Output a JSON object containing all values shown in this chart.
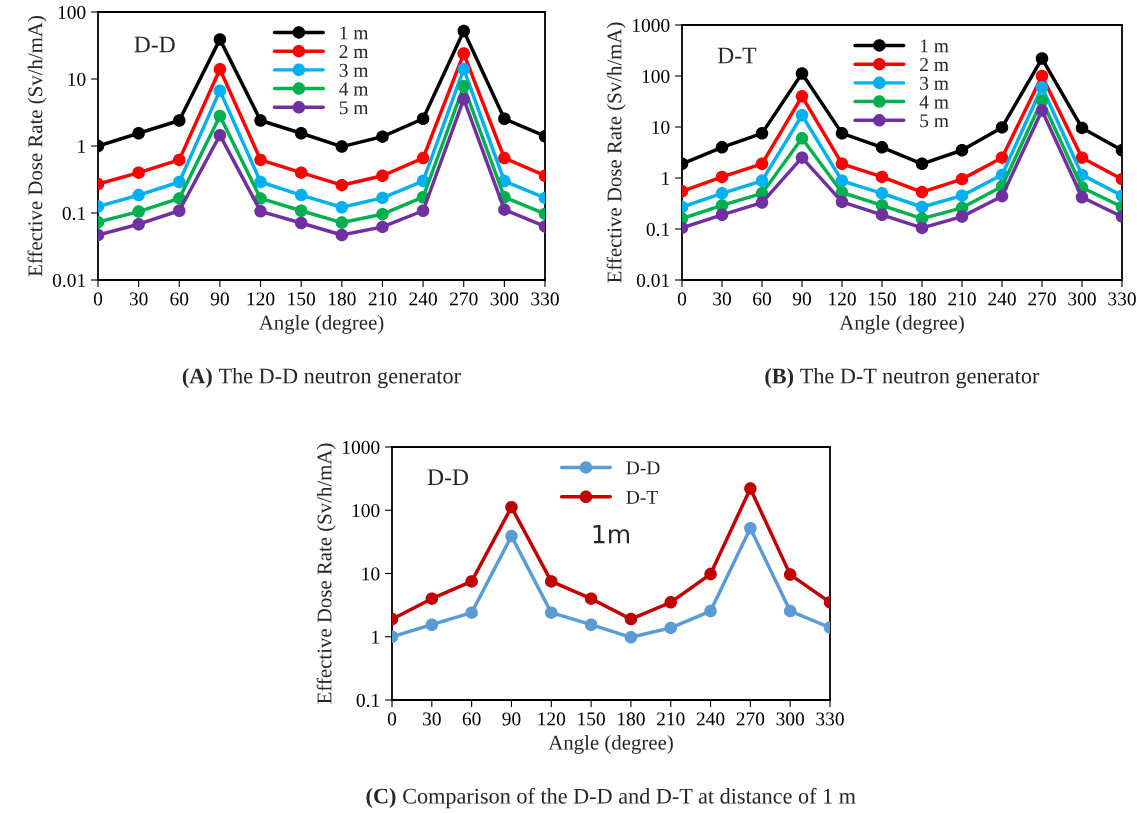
{
  "chart_data": [
    {
      "type": "line",
      "title": "(A) The D-D neutron generator",
      "xlabel": "Angle (degree)",
      "ylabel": "Effective Dose Rate (Sv/h/mA)",
      "annotations": [
        "D-D"
      ],
      "x": [
        0,
        30,
        60,
        90,
        120,
        150,
        180,
        210,
        240,
        270,
        300,
        330
      ],
      "xlim": [
        0,
        330
      ],
      "xticks": [
        0,
        30,
        60,
        90,
        120,
        150,
        180,
        210,
        240,
        270,
        300,
        330
      ],
      "log": "y",
      "ylim": [
        0.01,
        100
      ],
      "yticks": [
        0.01,
        0.1,
        1,
        10,
        100
      ],
      "grid": false,
      "legend": "top",
      "marker": "circle",
      "line_style": "solid",
      "series": [
        {
          "name": "1 m",
          "color": "#000000",
          "values": [
            1,
            1.55,
            2.4,
            39,
            2.4,
            1.55,
            0.98,
            1.38,
            2.55,
            52,
            2.55,
            1.4
          ]
        },
        {
          "name": "2 m",
          "color": "#ff0000",
          "values": [
            0.27,
            0.4,
            0.62,
            14,
            0.62,
            0.4,
            0.26,
            0.36,
            0.66,
            24,
            0.66,
            0.36
          ]
        },
        {
          "name": "3 m",
          "color": "#00b0f0",
          "values": [
            0.125,
            0.185,
            0.29,
            6.7,
            0.29,
            0.185,
            0.122,
            0.168,
            0.3,
            14,
            0.3,
            0.168
          ]
        },
        {
          "name": "4 m",
          "color": "#00b050",
          "values": [
            0.073,
            0.105,
            0.165,
            2.8,
            0.165,
            0.108,
            0.072,
            0.096,
            0.172,
            7.8,
            0.172,
            0.097
          ]
        },
        {
          "name": "5 m",
          "color": "#7030a0",
          "values": [
            0.047,
            0.068,
            0.108,
            1.45,
            0.106,
            0.071,
            0.047,
            0.062,
            0.108,
            5,
            0.112,
            0.063
          ]
        }
      ]
    },
    {
      "type": "line",
      "title": "(B) The D-T neutron generator",
      "xlabel": "Angle (degree)",
      "ylabel": "Effective Dose Rate (Sv/h/mA)",
      "annotations": [
        "D-T"
      ],
      "x": [
        0,
        30,
        60,
        90,
        120,
        150,
        180,
        210,
        240,
        270,
        300,
        330
      ],
      "xlim": [
        0,
        330
      ],
      "xticks": [
        0,
        30,
        60,
        90,
        120,
        150,
        180,
        210,
        240,
        270,
        300,
        330
      ],
      "log": "y",
      "ylim": [
        0.01,
        1000
      ],
      "yticks": [
        0.01,
        0.1,
        1,
        10,
        100,
        1000
      ],
      "grid": false,
      "legend": "top",
      "marker": "circle",
      "line_style": "solid",
      "series": [
        {
          "name": "1 m",
          "color": "#000000",
          "values": [
            1.9,
            4.0,
            7.5,
            112,
            7.5,
            4.0,
            1.9,
            3.5,
            9.8,
            220,
            9.6,
            3.5
          ]
        },
        {
          "name": "2 m",
          "color": "#ff0000",
          "values": [
            0.55,
            1.05,
            1.9,
            40,
            1.9,
            1.05,
            0.53,
            0.95,
            2.5,
            100,
            2.5,
            0.95
          ]
        },
        {
          "name": "3 m",
          "color": "#00b0f0",
          "values": [
            0.27,
            0.5,
            0.88,
            17,
            0.88,
            0.5,
            0.27,
            0.45,
            1.15,
            60,
            1.15,
            0.45
          ]
        },
        {
          "name": "4 m",
          "color": "#00b050",
          "values": [
            0.16,
            0.29,
            0.5,
            6,
            0.52,
            0.29,
            0.16,
            0.26,
            0.68,
            33,
            0.65,
            0.27
          ]
        },
        {
          "name": "5 m",
          "color": "#7030a0",
          "values": [
            0.105,
            0.19,
            0.33,
            2.5,
            0.34,
            0.19,
            0.105,
            0.175,
            0.44,
            21,
            0.42,
            0.175
          ]
        }
      ]
    },
    {
      "type": "line",
      "title": "(C) Comparison of the D-D and D-T at distance of 1 m",
      "xlabel": "Angle (degree)",
      "ylabel": "Effective Dose Rate (Sv/h/mA)",
      "annotations": [
        "D-D",
        "1m"
      ],
      "x": [
        0,
        30,
        60,
        90,
        120,
        150,
        180,
        210,
        240,
        270,
        300,
        330
      ],
      "xlim": [
        0,
        330
      ],
      "xticks": [
        0,
        30,
        60,
        90,
        120,
        150,
        180,
        210,
        240,
        270,
        300,
        330
      ],
      "log": "y",
      "ylim": [
        0.1,
        1000
      ],
      "yticks": [
        0.1,
        1,
        10,
        100,
        1000
      ],
      "grid": false,
      "legend": "top",
      "marker": "circle",
      "line_style": "solid",
      "series": [
        {
          "name": "D-D",
          "color": "#5b9bd5",
          "values": [
            1,
            1.55,
            2.4,
            39,
            2.4,
            1.55,
            0.98,
            1.38,
            2.55,
            52,
            2.55,
            1.4
          ]
        },
        {
          "name": "D-T",
          "color": "#c00000",
          "values": [
            1.9,
            4.0,
            7.5,
            112,
            7.5,
            4.0,
            1.9,
            3.5,
            9.8,
            220,
            9.6,
            3.5
          ]
        }
      ]
    }
  ]
}
